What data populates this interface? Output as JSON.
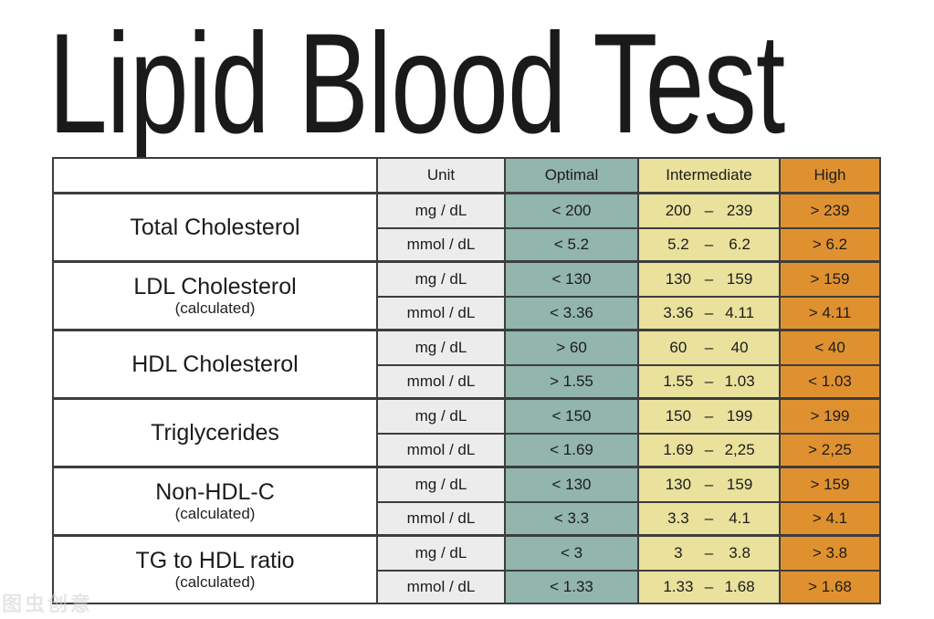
{
  "title": "Lipid Blood Test",
  "watermark": "图虫创意",
  "colors": {
    "optimal": "#92b5ac",
    "intermediate": "#e9e19c",
    "high": "#e0912f",
    "unit_bg": "#ececec",
    "border": "#3d3d3d"
  },
  "chart_data": {
    "type": "table",
    "title": "Lipid Blood Test",
    "dash": "–",
    "columns": [
      "",
      "Unit",
      "Optimal",
      "Intermediate",
      "High"
    ],
    "groups": [
      {
        "name": "Total Cholesterol",
        "note": "",
        "rows": [
          {
            "unit": "mg / dL",
            "optimal": "< 200",
            "range": [
              "200",
              "239"
            ],
            "high": "> 239"
          },
          {
            "unit": "mmol / dL",
            "optimal": "< 5.2",
            "range": [
              "5.2",
              "6.2"
            ],
            "high": "> 6.2"
          }
        ]
      },
      {
        "name": "LDL Cholesterol",
        "note": "(calculated)",
        "rows": [
          {
            "unit": "mg / dL",
            "optimal": "< 130",
            "range": [
              "130",
              "159"
            ],
            "high": "> 159"
          },
          {
            "unit": "mmol / dL",
            "optimal": "< 3.36",
            "range": [
              "3.36",
              "4.11"
            ],
            "high": "> 4.11"
          }
        ]
      },
      {
        "name": "HDL Cholesterol",
        "note": "",
        "rows": [
          {
            "unit": "mg / dL",
            "optimal": "> 60",
            "range": [
              "60",
              "40"
            ],
            "high": "< 40"
          },
          {
            "unit": "mmol / dL",
            "optimal": "> 1.55",
            "range": [
              "1.55",
              "1.03"
            ],
            "high": "< 1.03"
          }
        ]
      },
      {
        "name": "Triglycerides",
        "note": "",
        "rows": [
          {
            "unit": "mg / dL",
            "optimal": "< 150",
            "range": [
              "150",
              "199"
            ],
            "high": "> 199"
          },
          {
            "unit": "mmol / dL",
            "optimal": "< 1.69",
            "range": [
              "1.69",
              "2,25"
            ],
            "high": "> 2,25"
          }
        ]
      },
      {
        "name": "Non-HDL-C",
        "note": "(calculated)",
        "rows": [
          {
            "unit": "mg / dL",
            "optimal": "< 130",
            "range": [
              "130",
              "159"
            ],
            "high": "> 159"
          },
          {
            "unit": "mmol / dL",
            "optimal": "< 3.3",
            "range": [
              "3.3",
              "4.1"
            ],
            "high": "> 4.1"
          }
        ]
      },
      {
        "name": "TG to HDL ratio",
        "note": "(calculated)",
        "rows": [
          {
            "unit": "mg / dL",
            "optimal": "< 3",
            "range": [
              "3",
              "3.8"
            ],
            "high": "> 3.8"
          },
          {
            "unit": "mmol / dL",
            "optimal": "< 1.33",
            "range": [
              "1.33",
              "1.68"
            ],
            "high": "> 1.68"
          }
        ]
      }
    ]
  }
}
